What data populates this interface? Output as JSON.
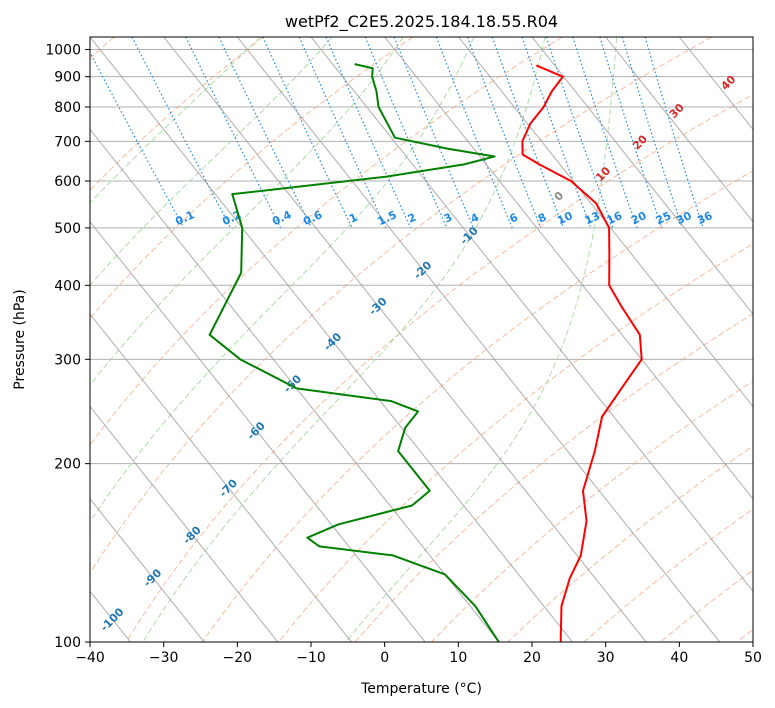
{
  "chart_data": {
    "type": "line",
    "title": "wetPf2_C2E5.2025.184.18.55.R04",
    "xlabel": "Temperature (°C)",
    "ylabel": "Pressure (hPa)",
    "xlim": [
      -40,
      50
    ],
    "ylim": [
      1050,
      100
    ],
    "y_scale": "log",
    "grid": true,
    "x_ticks": [
      "−40",
      "−30",
      "−20",
      "−10",
      "0",
      "10",
      "20",
      "30",
      "40",
      "50"
    ],
    "x_tick_values": [
      -40,
      -30,
      -20,
      -10,
      0,
      10,
      20,
      30,
      40,
      50
    ],
    "y_ticks": [
      "100",
      "200",
      "300",
      "400",
      "500",
      "600",
      "700",
      "800",
      "900",
      "1000"
    ],
    "y_tick_values": [
      100,
      200,
      300,
      400,
      500,
      600,
      700,
      800,
      900,
      1000
    ],
    "series": [
      {
        "role": "temperature",
        "color": "#ff0000",
        "points": [
          [
            940,
            17.5
          ],
          [
            900,
            19.9
          ],
          [
            850,
            16.8
          ],
          [
            800,
            14.0
          ],
          [
            750,
            10.4
          ],
          [
            700,
            7.4
          ],
          [
            665,
            6.0
          ],
          [
            640,
            7.2
          ],
          [
            600,
            9.7
          ],
          [
            550,
            10.7
          ],
          [
            500,
            9.8
          ],
          [
            450,
            6.9
          ],
          [
            400,
            3.6
          ],
          [
            370,
            3.0
          ],
          [
            330,
            2.4
          ],
          [
            300,
            0.0
          ],
          [
            270,
            -5.5
          ],
          [
            240,
            -11.6
          ],
          [
            210,
            -16.3
          ],
          [
            180,
            -22.2
          ],
          [
            160,
            -25.0
          ],
          [
            140,
            -29.5
          ],
          [
            128,
            -33.5
          ],
          [
            115,
            -37.6
          ],
          [
            100,
            -41.6
          ]
        ]
      },
      {
        "role": "dewpoint",
        "color": "#008000",
        "points": [
          [
            945,
            -7.0
          ],
          [
            930,
            -5.0
          ],
          [
            900,
            -6.0
          ],
          [
            850,
            -7.0
          ],
          [
            800,
            -8.4
          ],
          [
            750,
            -9.0
          ],
          [
            710,
            -9.5
          ],
          [
            680,
            -3.5
          ],
          [
            660,
            2.0
          ],
          [
            640,
            -3.0
          ],
          [
            610,
            -15.0
          ],
          [
            570,
            -37.7
          ],
          [
            500,
            -40.0
          ],
          [
            420,
            -45.0
          ],
          [
            330,
            -56.0
          ],
          [
            300,
            -54.5
          ],
          [
            268,
            -50.0
          ],
          [
            255,
            -38.5
          ],
          [
            245,
            -36.0
          ],
          [
            230,
            -39.5
          ],
          [
            210,
            -43.0
          ],
          [
            200,
            -43.0
          ],
          [
            180,
            -43.0
          ],
          [
            170,
            -47.0
          ],
          [
            158,
            -59.0
          ],
          [
            150,
            -64.7
          ],
          [
            145,
            -64.0
          ],
          [
            140,
            -55.0
          ],
          [
            130,
            -50.0
          ],
          [
            115,
            -49.3
          ],
          [
            100,
            -50.0
          ]
        ]
      }
    ],
    "dry_adiabats_c": [
      -100,
      -80,
      -60,
      -40,
      -20,
      0,
      20,
      40,
      60,
      80,
      100,
      120,
      140,
      160,
      180,
      200,
      220,
      240
    ],
    "moist_adiabats_c": [
      -20,
      -10,
      0,
      10,
      20,
      30
    ],
    "isotherms_c": [
      -140,
      -130,
      -120,
      -110,
      -100,
      -90,
      -80,
      -70,
      -60,
      -50,
      -40,
      -30,
      -20,
      -10,
      0,
      10,
      20,
      30,
      40,
      50
    ],
    "isotherm_labels": [
      "-100",
      "-90",
      "-80",
      "-70",
      "-60",
      "-50",
      "-40",
      "-30",
      "-20",
      "-10"
    ],
    "mixing_ratios_gkg": [
      "0.1",
      "0.2",
      "0.4",
      "0.6",
      "1",
      "1.5",
      "2",
      "3",
      "4",
      "6",
      "8",
      "10",
      "13",
      "16",
      "20",
      "25",
      "30",
      "36"
    ],
    "moist_labels": [
      "0",
      "10",
      "20",
      "30",
      "40"
    ],
    "colors": {
      "temperature": "#ff0000",
      "dewpoint": "#008000",
      "dry_adiabat": "#f4a582",
      "moist_adiabat": "#a6d8a0",
      "mixing_ratio": "#1e88e5",
      "isotherm": "#999999",
      "isotherm_label": "#1f77b4",
      "moist_label_red": "#d62728",
      "moist_label_gray": "#888888"
    }
  }
}
